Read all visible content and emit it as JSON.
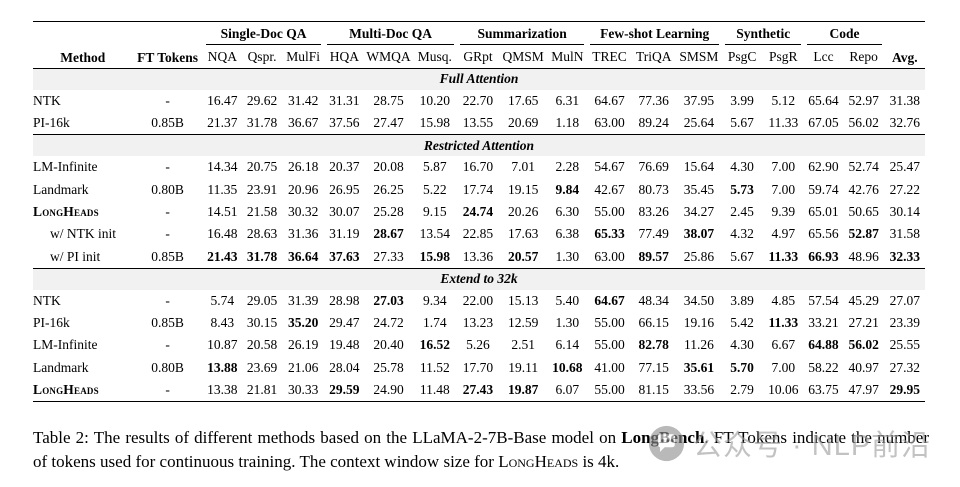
{
  "table": {
    "col_headers": {
      "method": "Method",
      "ft_tokens": "FT Tokens",
      "avg": "Avg."
    },
    "groups": [
      {
        "label": "Single-Doc QA",
        "span": 3
      },
      {
        "label": "Multi-Doc QA",
        "span": 3
      },
      {
        "label": "Summarization",
        "span": 3
      },
      {
        "label": "Few-shot Learning",
        "span": 3
      },
      {
        "label": "Synthetic",
        "span": 2
      },
      {
        "label": "Code",
        "span": 2
      }
    ],
    "subheaders": [
      "NQA",
      "Qspr.",
      "MulFi",
      "HQA",
      "WMQA",
      "Musq.",
      "GRpt",
      "QMSM",
      "MulN",
      "TREC",
      "TriQA",
      "SMSM",
      "PsgC",
      "PsgR",
      "Lcc",
      "Repo"
    ],
    "sections": [
      {
        "title": "Full Attention",
        "rows": [
          {
            "method": "NTK",
            "style": "normal",
            "ft": "-",
            "values": [
              "16.47",
              "29.62",
              "31.42",
              "31.31",
              "28.75",
              "10.20",
              "22.70",
              "17.65",
              "6.31",
              "64.67",
              "77.36",
              "37.95",
              "3.99",
              "5.12",
              "65.64",
              "52.97",
              "31.38"
            ],
            "bold": []
          },
          {
            "method": "PI-16k",
            "style": "normal",
            "ft": "0.85B",
            "values": [
              "21.37",
              "31.78",
              "36.67",
              "37.56",
              "27.47",
              "15.98",
              "13.55",
              "20.69",
              "1.18",
              "63.00",
              "89.24",
              "25.64",
              "5.67",
              "11.33",
              "67.05",
              "56.02",
              "32.76"
            ],
            "bold": []
          }
        ]
      },
      {
        "title": "Restricted Attention",
        "rows": [
          {
            "method": "LM-Infinite",
            "style": "normal",
            "ft": "-",
            "values": [
              "14.34",
              "20.75",
              "26.18",
              "20.37",
              "20.08",
              "5.87",
              "16.70",
              "7.01",
              "2.28",
              "54.67",
              "76.69",
              "15.64",
              "4.30",
              "7.00",
              "62.90",
              "52.74",
              "25.47"
            ],
            "bold": []
          },
          {
            "method": "Landmark",
            "style": "normal",
            "ft": "0.80B",
            "values": [
              "11.35",
              "23.91",
              "20.96",
              "26.95",
              "26.25",
              "5.22",
              "17.74",
              "19.15",
              "9.84",
              "42.67",
              "80.73",
              "35.45",
              "5.73",
              "7.00",
              "59.74",
              "42.76",
              "27.22"
            ],
            "bold": [
              8,
              12
            ]
          },
          {
            "method": "LongHeads",
            "style": "smallcaps",
            "ft": "-",
            "values": [
              "14.51",
              "21.58",
              "30.32",
              "30.07",
              "25.28",
              "9.15",
              "24.74",
              "20.26",
              "6.30",
              "55.00",
              "83.26",
              "34.27",
              "2.45",
              "9.39",
              "65.01",
              "50.65",
              "30.14"
            ],
            "bold": [
              6
            ]
          },
          {
            "method": "w/ NTK init",
            "style": "indent",
            "ft": "-",
            "values": [
              "16.48",
              "28.63",
              "31.36",
              "31.19",
              "28.67",
              "13.54",
              "22.85",
              "17.63",
              "6.38",
              "65.33",
              "77.49",
              "38.07",
              "4.32",
              "4.97",
              "65.56",
              "52.87",
              "31.58"
            ],
            "bold": [
              4,
              9,
              11,
              15
            ]
          },
          {
            "method": "w/ PI init",
            "style": "indent",
            "ft": "0.85B",
            "values": [
              "21.43",
              "31.78",
              "36.64",
              "37.63",
              "27.33",
              "15.98",
              "13.36",
              "20.57",
              "1.30",
              "63.00",
              "89.57",
              "25.86",
              "5.67",
              "11.33",
              "66.93",
              "48.96",
              "32.33"
            ],
            "bold": [
              0,
              1,
              2,
              3,
              5,
              7,
              10,
              13,
              14,
              16
            ]
          }
        ]
      },
      {
        "title": "Extend to 32k",
        "rows": [
          {
            "method": "NTK",
            "style": "normal",
            "ft": "-",
            "values": [
              "5.74",
              "29.05",
              "31.39",
              "28.98",
              "27.03",
              "9.34",
              "22.00",
              "15.13",
              "5.40",
              "64.67",
              "48.34",
              "34.50",
              "3.89",
              "4.85",
              "57.54",
              "45.29",
              "27.07"
            ],
            "bold": [
              4,
              9
            ]
          },
          {
            "method": "PI-16k",
            "style": "normal",
            "ft": "0.85B",
            "values": [
              "8.43",
              "30.15",
              "35.20",
              "29.47",
              "24.72",
              "1.74",
              "13.23",
              "12.59",
              "1.30",
              "55.00",
              "66.15",
              "19.16",
              "5.42",
              "11.33",
              "33.21",
              "27.21",
              "23.39"
            ],
            "bold": [
              2,
              13
            ]
          },
          {
            "method": "LM-Infinite",
            "style": "normal",
            "ft": "-",
            "values": [
              "10.87",
              "20.58",
              "26.19",
              "19.48",
              "20.40",
              "16.52",
              "5.26",
              "2.51",
              "6.14",
              "55.00",
              "82.78",
              "11.26",
              "4.30",
              "6.67",
              "64.88",
              "56.02",
              "25.55"
            ],
            "bold": [
              5,
              10,
              14,
              15
            ]
          },
          {
            "method": "Landmark",
            "style": "normal",
            "ft": "0.80B",
            "values": [
              "13.88",
              "23.69",
              "21.06",
              "28.04",
              "25.78",
              "11.52",
              "17.70",
              "19.11",
              "10.68",
              "41.00",
              "77.15",
              "35.61",
              "5.70",
              "7.00",
              "58.22",
              "40.97",
              "27.32"
            ],
            "bold": [
              0,
              8,
              11,
              12
            ]
          },
          {
            "method": "LongHeads",
            "style": "smallcaps",
            "ft": "-",
            "values": [
              "13.38",
              "21.81",
              "30.33",
              "29.59",
              "24.90",
              "11.48",
              "27.43",
              "19.87",
              "6.07",
              "55.00",
              "81.15",
              "33.56",
              "2.79",
              "10.06",
              "63.75",
              "47.97",
              "29.95"
            ],
            "bold": [
              3,
              6,
              7,
              16
            ]
          }
        ]
      }
    ]
  },
  "caption": {
    "label": "Table 2:",
    "seg1": "  The results of different methods based on the LLaMA-2-7B-Base model on ",
    "bold1": "LongBench",
    "seg2": ". FT Tokens indicate the number of tokens used for continuous training. The context window size for ",
    "smallcaps1": "LongHeads",
    "seg3": " is 4k."
  },
  "watermark": {
    "icon": "chat-bubble-icon",
    "text": "公众号 · NLP前沿"
  }
}
